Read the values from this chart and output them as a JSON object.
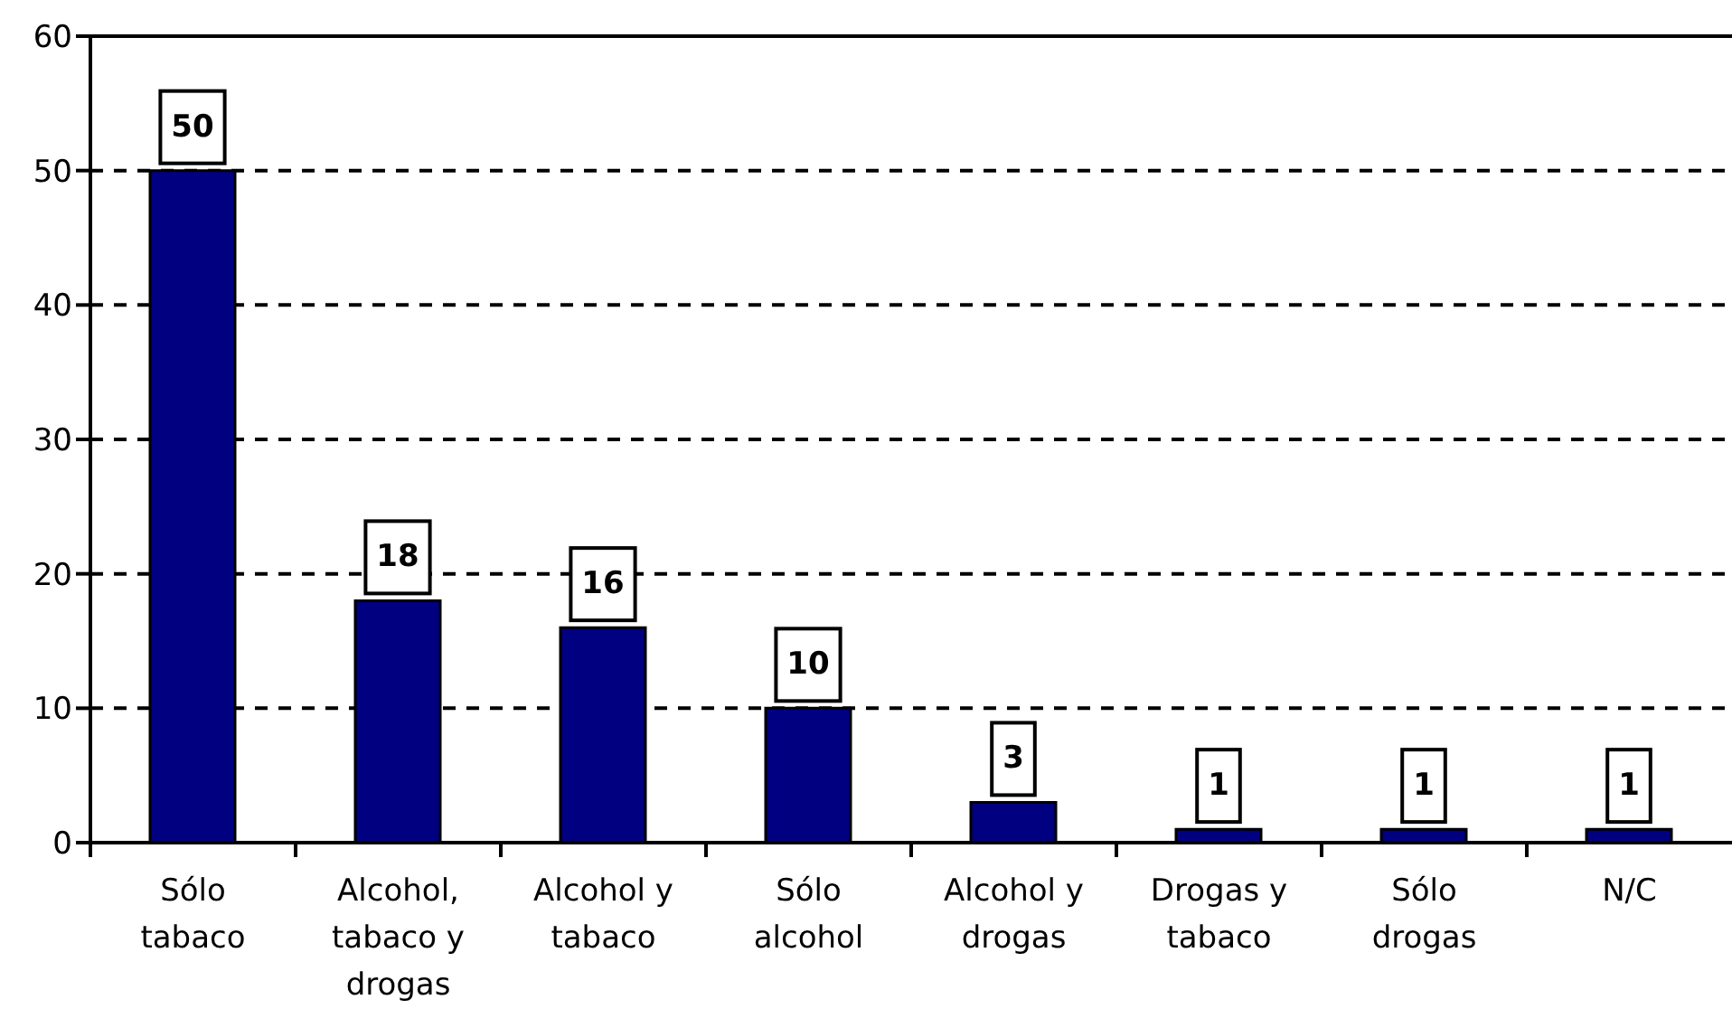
{
  "chart_data": {
    "type": "bar",
    "categories": [
      "Sólo tabaco",
      "Alcohol, tabaco y drogas",
      "Alcohol y tabaco",
      "Sólo alcohol",
      "Alcohol y drogas",
      "Drogas y tabaco",
      "Sólo drogas",
      "N/C"
    ],
    "values": [
      50,
      18,
      16,
      10,
      3,
      1,
      1,
      1
    ],
    "color": "#000080",
    "ylim": [
      0,
      60
    ],
    "yticks": [
      0,
      10,
      20,
      30,
      40,
      50,
      60
    ],
    "grid": "y",
    "data_labels": true
  }
}
